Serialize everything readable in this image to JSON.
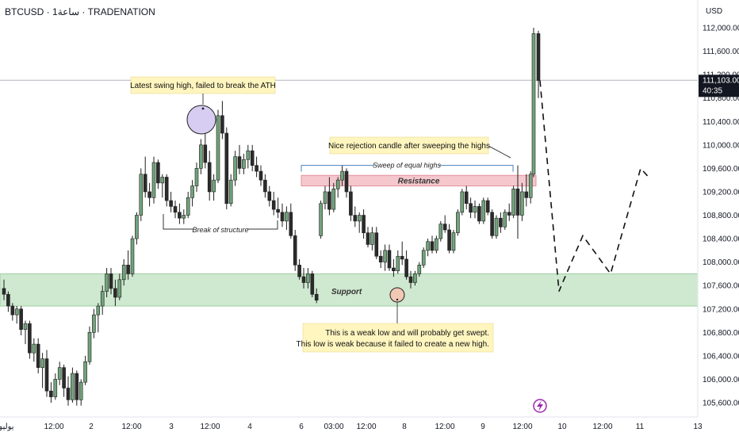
{
  "header": {
    "title": "BTCUSD · 1ساعة · TRADENATION",
    "currency": "USD"
  },
  "price_tag": {
    "price": "111,103.00",
    "countdown": "40:35"
  },
  "colors": {
    "up": "#71a37a",
    "down": "#2b2b2b",
    "support_zone": "#cfe8d0",
    "resistance_zone": "#f4c8cd",
    "note_bg": "#fff5bf",
    "swing_circle": "#d7ccf2",
    "low_circle": "#f1c8b4",
    "ai_badge": "#9b27af"
  },
  "zones": {
    "support": {
      "label": "Support",
      "from": 107250,
      "to": 107800
    },
    "resistance": {
      "label": "Resistance",
      "from": 109300,
      "to": 109480
    }
  },
  "annotations": {
    "swing_high": "Latest swing high, failed to break the ATH",
    "break_of_structure": "Break of structure",
    "rejection": "Nice rejection candle after sweeping the highs",
    "sweep": "Sweep of equal highs",
    "weak_low_line1": "This is a weak low and will probably get swept.",
    "weak_low_line2": "This low is weak because it failed to create a new high."
  },
  "icons": {
    "ai_badge": "lightning-bolt-icon"
  },
  "chart_data": {
    "type": "candlestick",
    "interval": "1h",
    "y_axis": {
      "range": [
        105400,
        112200
      ],
      "ticks": [
        "112,000.00",
        "111,600.00",
        "111,200.00",
        "110,800.00",
        "110,400.00",
        "110,000.00",
        "109,600.00",
        "109,200.00",
        "108,800.00",
        "108,400.00",
        "108,000.00",
        "107,600.00",
        "107,200.00",
        "106,800.00",
        "106,400.00",
        "106,000.00",
        "105,600.00"
      ]
    },
    "x_axis": {
      "ticks": [
        "يوليو",
        "12:00",
        "2",
        "12:00",
        "3",
        "12:00",
        "4",
        "6",
        "03:00",
        "12:00",
        "8",
        "12:00",
        "9",
        "12:00",
        "10",
        "12:00",
        "11",
        "13"
      ]
    },
    "current_price": 111103,
    "swept_highs_level": 109650,
    "candles": [
      [
        107550,
        107700,
        107350,
        107450
      ],
      [
        107450,
        107500,
        107150,
        107250
      ],
      [
        107250,
        107300,
        107000,
        107100
      ],
      [
        107100,
        107250,
        106950,
        107200
      ],
      [
        107200,
        107250,
        106750,
        106850
      ],
      [
        106850,
        107000,
        106600,
        106950
      ],
      [
        106950,
        107000,
        106350,
        106450
      ],
      [
        106450,
        106700,
        106300,
        106600
      ],
      [
        106600,
        106700,
        106100,
        106200
      ],
      [
        106200,
        106450,
        105850,
        106350
      ],
      [
        106350,
        106500,
        105700,
        105800
      ],
      [
        105800,
        105950,
        105600,
        105700
      ],
      [
        105700,
        106100,
        105650,
        106000
      ],
      [
        106000,
        106300,
        105900,
        106200
      ],
      [
        106200,
        106250,
        105700,
        105850
      ],
      [
        105850,
        106050,
        105550,
        105650
      ],
      [
        105650,
        106200,
        105600,
        106100
      ],
      [
        106100,
        106150,
        105550,
        105650
      ],
      [
        105650,
        106000,
        105550,
        105950
      ],
      [
        105950,
        106400,
        105900,
        106300
      ],
      [
        106300,
        106900,
        106250,
        106800
      ],
      [
        106800,
        107200,
        106700,
        107100
      ],
      [
        107100,
        107300,
        106800,
        107250
      ],
      [
        107250,
        107600,
        107100,
        107500
      ],
      [
        107500,
        107900,
        107400,
        107800
      ],
      [
        107800,
        107900,
        107450,
        107550
      ],
      [
        107550,
        107700,
        107250,
        107400
      ],
      [
        107400,
        107800,
        107350,
        107700
      ],
      [
        107700,
        108050,
        107600,
        107950
      ],
      [
        107950,
        108200,
        107700,
        107800
      ],
      [
        107800,
        108450,
        107750,
        108400
      ],
      [
        108400,
        108850,
        108300,
        108800
      ],
      [
        108800,
        109600,
        108700,
        109500
      ],
      [
        109500,
        109800,
        109100,
        109200
      ],
      [
        109200,
        109350,
        108950,
        109100
      ],
      [
        109100,
        109800,
        109000,
        109700
      ],
      [
        109700,
        109750,
        109250,
        109350
      ],
      [
        109350,
        109500,
        109100,
        109450
      ],
      [
        109450,
        109500,
        108950,
        109050
      ],
      [
        109050,
        109200,
        108850,
        108950
      ],
      [
        108950,
        109050,
        108750,
        108850
      ],
      [
        108850,
        109000,
        108650,
        108750
      ],
      [
        108750,
        108900,
        108650,
        108800
      ],
      [
        108800,
        109200,
        108750,
        109100
      ],
      [
        109100,
        109400,
        108950,
        109300
      ],
      [
        109300,
        109700,
        109200,
        109600
      ],
      [
        109600,
        110100,
        109500,
        110000
      ],
      [
        110000,
        110200,
        109600,
        109700
      ],
      [
        109700,
        109900,
        109050,
        109200
      ],
      [
        109200,
        109500,
        109050,
        109400
      ],
      [
        109400,
        110600,
        109350,
        110500
      ],
      [
        110500,
        110750,
        110100,
        110200
      ],
      [
        110200,
        110300,
        108900,
        109000
      ],
      [
        109000,
        109500,
        108950,
        109400
      ],
      [
        109400,
        109900,
        109300,
        109800
      ],
      [
        109800,
        110000,
        109500,
        109600
      ],
      [
        109600,
        109850,
        109500,
        109750
      ],
      [
        109750,
        110000,
        109600,
        109900
      ],
      [
        109900,
        110000,
        109550,
        109650
      ],
      [
        109650,
        109800,
        109450,
        109550
      ],
      [
        109550,
        109650,
        109300,
        109400
      ],
      [
        109400,
        109500,
        109100,
        109200
      ],
      [
        109200,
        109300,
        108950,
        109050
      ],
      [
        109050,
        109200,
        108800,
        108900
      ],
      [
        108900,
        109100,
        108750,
        108850
      ],
      [
        108850,
        109000,
        108600,
        108700
      ],
      [
        108700,
        108950,
        108550,
        108850
      ],
      [
        108850,
        109000,
        108400,
        108450
      ],
      [
        108450,
        108550,
        107850,
        107950
      ],
      [
        107950,
        108050,
        107700,
        107750
      ],
      [
        107750,
        107900,
        107550,
        107650
      ],
      [
        107650,
        107900,
        107550,
        107800
      ],
      [
        107800,
        107850,
        107400,
        107450
      ],
      [
        107450,
        107550,
        107300,
        107350
      ],
      [
        108450,
        109050,
        108400,
        109000
      ],
      [
        109000,
        109300,
        108900,
        109200
      ],
      [
        109200,
        109450,
        108800,
        108900
      ],
      [
        108900,
        109350,
        108850,
        109250
      ],
      [
        109250,
        109450,
        109100,
        109400
      ],
      [
        109400,
        109650,
        109300,
        109550
      ],
      [
        109550,
        109600,
        109100,
        109200
      ],
      [
        109200,
        109300,
        108700,
        108800
      ],
      [
        108800,
        108950,
        108600,
        108700
      ],
      [
        108700,
        108850,
        108500,
        108800
      ],
      [
        108800,
        108900,
        108400,
        108500
      ],
      [
        108500,
        108600,
        108250,
        108300
      ],
      [
        108300,
        108600,
        108200,
        108500
      ],
      [
        108500,
        108600,
        108050,
        108100
      ],
      [
        108100,
        108200,
        107900,
        108000
      ],
      [
        108000,
        108300,
        107850,
        108200
      ],
      [
        108200,
        108300,
        107850,
        107900
      ],
      [
        107900,
        108050,
        107750,
        107850
      ],
      [
        107850,
        108200,
        107800,
        108100
      ],
      [
        108100,
        108350,
        107950,
        108050
      ],
      [
        108050,
        108200,
        107700,
        107750
      ],
      [
        107750,
        107850,
        107550,
        107650
      ],
      [
        107650,
        107850,
        107600,
        107800
      ],
      [
        107800,
        108000,
        107750,
        107950
      ],
      [
        107950,
        108250,
        107900,
        108200
      ],
      [
        108200,
        108400,
        108100,
        108350
      ],
      [
        108350,
        108450,
        108150,
        108200
      ],
      [
        108200,
        108450,
        108150,
        108400
      ],
      [
        108400,
        108700,
        108350,
        108650
      ],
      [
        108650,
        108800,
        108500,
        108550
      ],
      [
        108550,
        108650,
        108150,
        108200
      ],
      [
        108200,
        108550,
        108150,
        108500
      ],
      [
        108500,
        108900,
        108450,
        108850
      ],
      [
        108850,
        109250,
        108800,
        109200
      ],
      [
        109200,
        109300,
        108900,
        109000
      ],
      [
        109000,
        109100,
        108750,
        108850
      ],
      [
        108850,
        109050,
        108750,
        108950
      ],
      [
        108950,
        109000,
        108650,
        108700
      ],
      [
        108700,
        109100,
        108650,
        109050
      ],
      [
        109050,
        109100,
        108800,
        108850
      ],
      [
        108850,
        108900,
        108400,
        108450
      ],
      [
        108450,
        108800,
        108400,
        108750
      ],
      [
        108750,
        108850,
        108500,
        108600
      ],
      [
        108600,
        108900,
        108550,
        108850
      ],
      [
        108850,
        109000,
        108700,
        108800
      ],
      [
        108800,
        109300,
        108750,
        109250
      ],
      [
        109250,
        109650,
        108400,
        108800
      ],
      [
        108800,
        109350,
        108700,
        109200
      ],
      [
        109200,
        109500,
        108950,
        109100
      ],
      [
        109100,
        109550,
        109000,
        109500
      ],
      [
        109500,
        112000,
        109450,
        111900
      ],
      [
        111900,
        111950,
        110800,
        111100
      ]
    ],
    "projection": [
      [
        111100
      ],
      [
        109600
      ],
      [
        108000
      ],
      [
        107500
      ],
      [
        108000
      ],
      [
        108450
      ],
      [
        108150
      ],
      [
        107800
      ],
      [
        108350
      ],
      [
        108900
      ],
      [
        109500
      ],
      [
        109600
      ],
      [
        109400
      ]
    ]
  }
}
